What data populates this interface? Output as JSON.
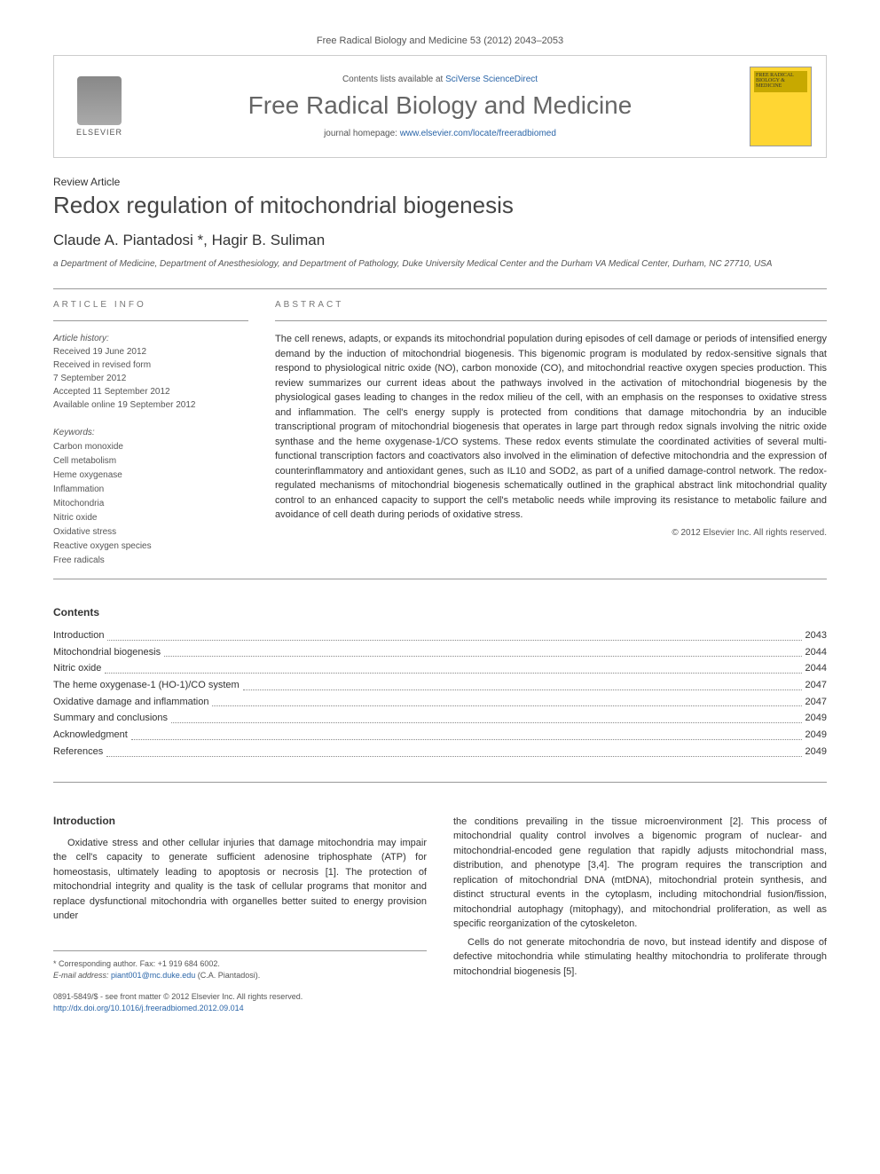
{
  "journal_ref": "Free Radical Biology and Medicine 53 (2012) 2043–2053",
  "header": {
    "contents_prefix": "Contents lists available at ",
    "contents_link": "SciVerse ScienceDirect",
    "journal_name": "Free Radical Biology and Medicine",
    "homepage_prefix": "journal homepage: ",
    "homepage_url": "www.elsevier.com/locate/freeradbiomed",
    "publisher": "ELSEVIER",
    "cover_text": "FREE RADICAL BIOLOGY & MEDICINE"
  },
  "article": {
    "type": "Review Article",
    "title": "Redox regulation of mitochondrial biogenesis",
    "authors": "Claude A. Piantadosi *, Hagir B. Suliman",
    "affiliation": "a Department of Medicine, Department of Anesthesiology, and Department of Pathology, Duke University Medical Center and the Durham VA Medical Center, Durham, NC 27710, USA"
  },
  "info": {
    "section_label": "ARTICLE INFO",
    "history_label": "Article history:",
    "history": [
      "Received 19 June 2012",
      "Received in revised form",
      "7 September 2012",
      "Accepted 11 September 2012",
      "Available online 19 September 2012"
    ],
    "keywords_label": "Keywords:",
    "keywords": [
      "Carbon monoxide",
      "Cell metabolism",
      "Heme oxygenase",
      "Inflammation",
      "Mitochondria",
      "Nitric oxide",
      "Oxidative stress",
      "Reactive oxygen species",
      "Free radicals"
    ]
  },
  "abstract": {
    "section_label": "ABSTRACT",
    "text": "The cell renews, adapts, or expands its mitochondrial population during episodes of cell damage or periods of intensified energy demand by the induction of mitochondrial biogenesis. This bigenomic program is modulated by redox-sensitive signals that respond to physiological nitric oxide (NO), carbon monoxide (CO), and mitochondrial reactive oxygen species production. This review summarizes our current ideas about the pathways involved in the activation of mitochondrial biogenesis by the physiological gases leading to changes in the redox milieu of the cell, with an emphasis on the responses to oxidative stress and inflammation. The cell's energy supply is protected from conditions that damage mitochondria by an inducible transcriptional program of mitochondrial biogenesis that operates in large part through redox signals involving the nitric oxide synthase and the heme oxygenase-1/CO systems. These redox events stimulate the coordinated activities of several multi-functional transcription factors and coactivators also involved in the elimination of defective mitochondria and the expression of counterinflammatory and antioxidant genes, such as IL10 and SOD2, as part of a unified damage-control network. The redox-regulated mechanisms of mitochondrial biogenesis schematically outlined in the graphical abstract link mitochondrial quality control to an enhanced capacity to support the cell's metabolic needs while improving its resistance to metabolic failure and avoidance of cell death during periods of oxidative stress.",
    "copyright": "© 2012 Elsevier Inc. All rights reserved."
  },
  "contents": {
    "title": "Contents",
    "items": [
      {
        "label": "Introduction",
        "page": "2043"
      },
      {
        "label": "Mitochondrial biogenesis",
        "page": "2044"
      },
      {
        "label": "Nitric oxide",
        "page": "2044"
      },
      {
        "label": "The heme oxygenase-1 (HO-1)/CO system",
        "page": "2047"
      },
      {
        "label": "Oxidative damage and inflammation",
        "page": "2047"
      },
      {
        "label": "Summary and conclusions",
        "page": "2049"
      },
      {
        "label": "Acknowledgment",
        "page": "2049"
      },
      {
        "label": "References",
        "page": "2049"
      }
    ]
  },
  "intro": {
    "heading": "Introduction",
    "para1": "Oxidative stress and other cellular injuries that damage mitochondria may impair the cell's capacity to generate sufficient adenosine triphosphate (ATP) for homeostasis, ultimately leading to apoptosis or necrosis [1]. The protection of mitochondrial integrity and quality is the task of cellular programs that monitor and replace dysfunctional mitochondria with organelles better suited to energy provision under",
    "para2": "the conditions prevailing in the tissue microenvironment [2]. This process of mitochondrial quality control involves a bigenomic program of nuclear- and mitochondrial-encoded gene regulation that rapidly adjusts mitochondrial mass, distribution, and phenotype [3,4]. The program requires the transcription and replication of mitochondrial DNA (mtDNA), mitochondrial protein synthesis, and distinct structural events in the cytoplasm, including mitochondrial fusion/fission, mitochondrial autophagy (mitophagy), and mitochondrial proliferation, as well as specific reorganization of the cytoskeleton.",
    "para3": "Cells do not generate mitochondria de novo, but instead identify and dispose of defective mitochondria while stimulating healthy mitochondria to proliferate through mitochondrial biogenesis [5]."
  },
  "footer": {
    "corresponding": "* Corresponding author. Fax: +1 919 684 6002.",
    "email_label": "E-mail address: ",
    "email": "piant001@mc.duke.edu",
    "email_suffix": " (C.A. Piantadosi).",
    "copyright_line": "0891-5849/$ - see front matter © 2012 Elsevier Inc. All rights reserved.",
    "doi": "http://dx.doi.org/10.1016/j.freeradbiomed.2012.09.014"
  },
  "colors": {
    "link": "#2a65a8",
    "text": "#333333",
    "muted": "#555555",
    "cover_bg": "#ffd633"
  }
}
